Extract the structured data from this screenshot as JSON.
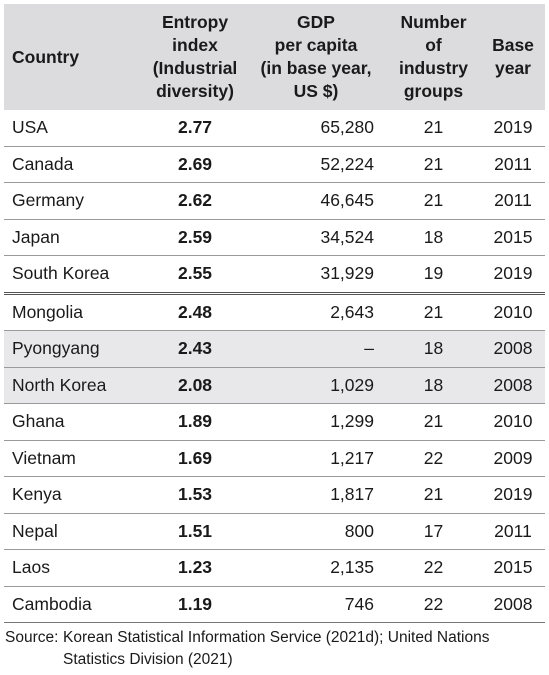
{
  "headers": {
    "country": "Country",
    "entropy": [
      "Entropy",
      "index",
      "(Industrial",
      "diversity)"
    ],
    "gdp": [
      "GDP",
      "per capita",
      "(in base year,",
      "US $)"
    ],
    "groups": [
      "Number",
      "of",
      "industry",
      "groups"
    ],
    "year": [
      "Base",
      "year"
    ]
  },
  "rows": [
    {
      "country": "USA",
      "entropy": "2.77",
      "gdp": "65,280",
      "groups": "21",
      "year": "2019"
    },
    {
      "country": "Canada",
      "entropy": "2.69",
      "gdp": "52,224",
      "groups": "21",
      "year": "2011"
    },
    {
      "country": "Germany",
      "entropy": "2.62",
      "gdp": "46,645",
      "groups": "21",
      "year": "2011"
    },
    {
      "country": "Japan",
      "entropy": "2.59",
      "gdp": "34,524",
      "groups": "18",
      "year": "2015"
    },
    {
      "country": "South Korea",
      "entropy": "2.55",
      "gdp": "31,929",
      "groups": "19",
      "year": "2019"
    },
    {
      "country": "Mongolia",
      "entropy": "2.48",
      "gdp": "2,643",
      "groups": "21",
      "year": "2010"
    },
    {
      "country": "Pyongyang",
      "entropy": "2.43",
      "gdp": "–",
      "groups": "18",
      "year": "2008"
    },
    {
      "country": "North Korea",
      "entropy": "2.08",
      "gdp": "1,029",
      "groups": "18",
      "year": "2008"
    },
    {
      "country": "Ghana",
      "entropy": "1.89",
      "gdp": "1,299",
      "groups": "21",
      "year": "2010"
    },
    {
      "country": "Vietnam",
      "entropy": "1.69",
      "gdp": "1,217",
      "groups": "22",
      "year": "2009"
    },
    {
      "country": "Kenya",
      "entropy": "1.53",
      "gdp": "1,817",
      "groups": "21",
      "year": "2019"
    },
    {
      "country": "Nepal",
      "entropy": "1.51",
      "gdp": "800",
      "groups": "17",
      "year": "2011"
    },
    {
      "country": "Laos",
      "entropy": "1.23",
      "gdp": "2,135",
      "groups": "22",
      "year": "2015"
    },
    {
      "country": "Cambodia",
      "entropy": "1.19",
      "gdp": "746",
      "groups": "22",
      "year": "2008"
    }
  ],
  "source": {
    "label": "Source:",
    "text": "Korean Statistical Information Service (2021d); United Nations Statistics Division (2021)"
  }
}
